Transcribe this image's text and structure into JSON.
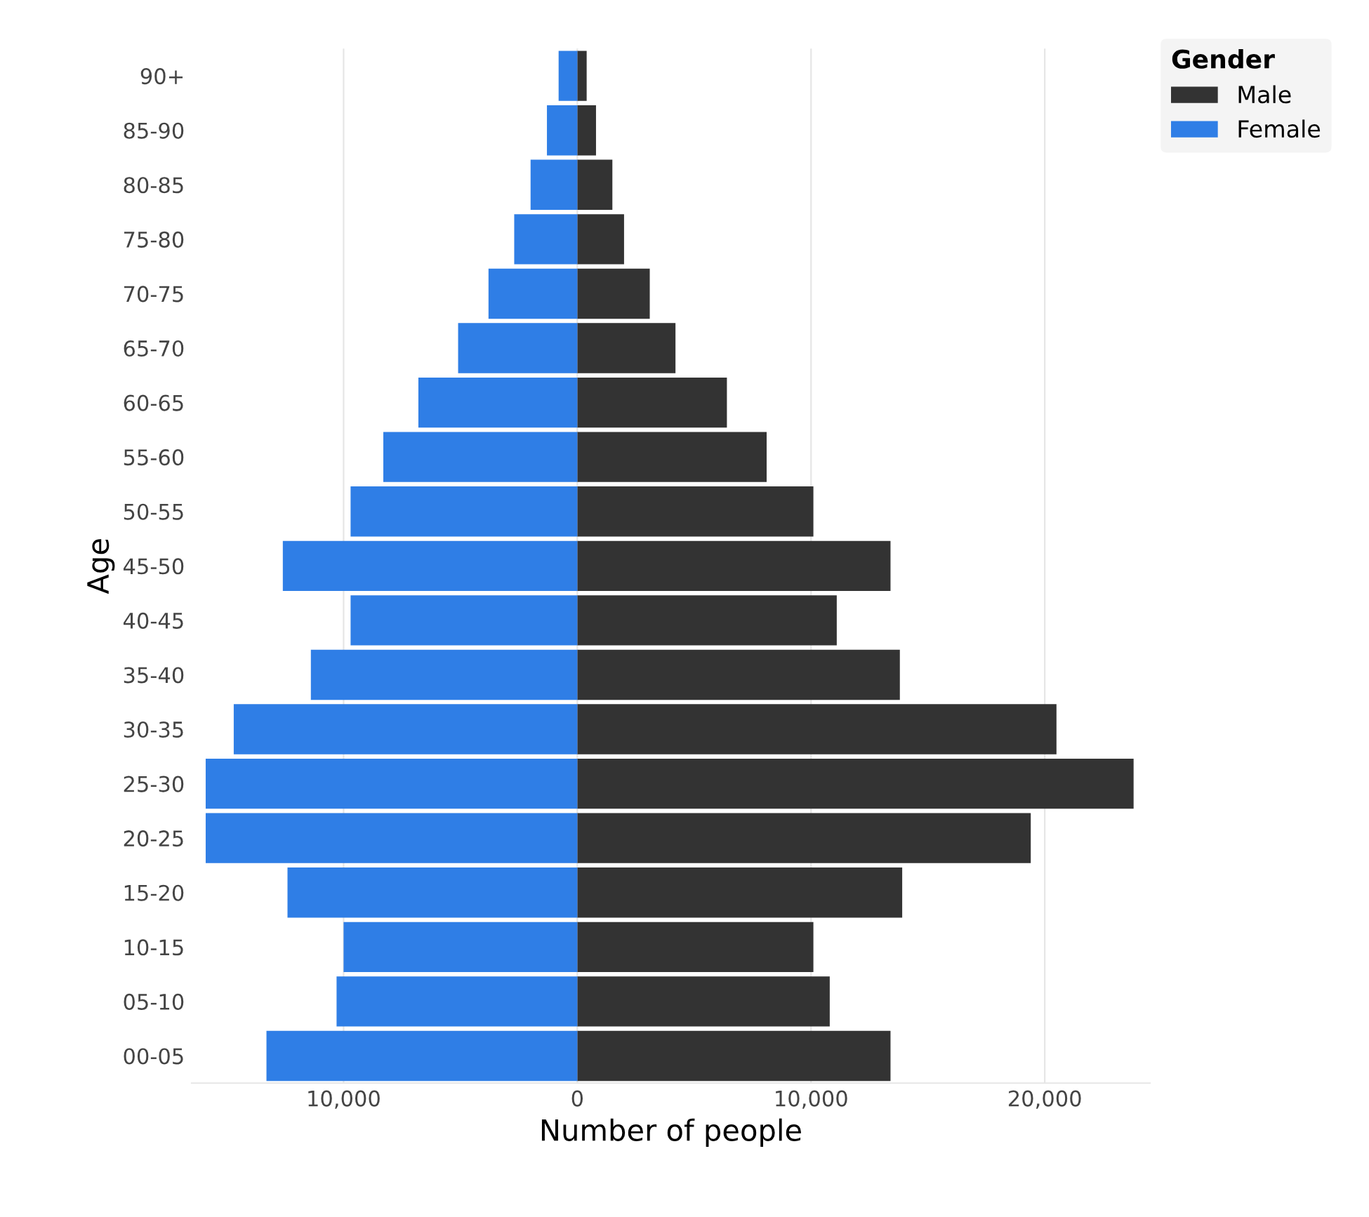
{
  "chart_data": {
    "type": "bar",
    "orientation": "horizontal",
    "stacked": true,
    "xlabel": "Number of people",
    "ylabel": "Age",
    "legend_title": "Gender",
    "legend": "top right",
    "grid": "x",
    "categories": [
      "90+",
      "85-90",
      "80-85",
      "75-80",
      "70-75",
      "65-70",
      "60-65",
      "55-60",
      "50-55",
      "45-50",
      "40-45",
      "35-40",
      "30-35",
      "25-30",
      "20-25",
      "15-20",
      "10-15",
      "05-10",
      "00-05"
    ],
    "series": [
      {
        "name": "Male",
        "color": "#333333",
        "values": [
          400,
          800,
          1500,
          2000,
          3100,
          4200,
          6400,
          8100,
          10100,
          13400,
          11100,
          13800,
          20500,
          23800,
          19400,
          13900,
          10100,
          10800,
          13400
        ]
      },
      {
        "name": "Female",
        "color": "#2f7ee6",
        "values": [
          -800,
          -1300,
          -2000,
          -2700,
          -3800,
          -5100,
          -6800,
          -8300,
          -9700,
          -12600,
          -9700,
          -11400,
          -14700,
          -15900,
          -15900,
          -12400,
          -10000,
          -10300,
          -13300
        ]
      }
    ],
    "xlim": [
      -16500,
      24500
    ],
    "xticks": [
      {
        "value": -10000,
        "label": "10,000"
      },
      0,
      {
        "value": 10000,
        "label": "10,000"
      },
      {
        "value": 20000,
        "label": "20,000"
      }
    ]
  }
}
